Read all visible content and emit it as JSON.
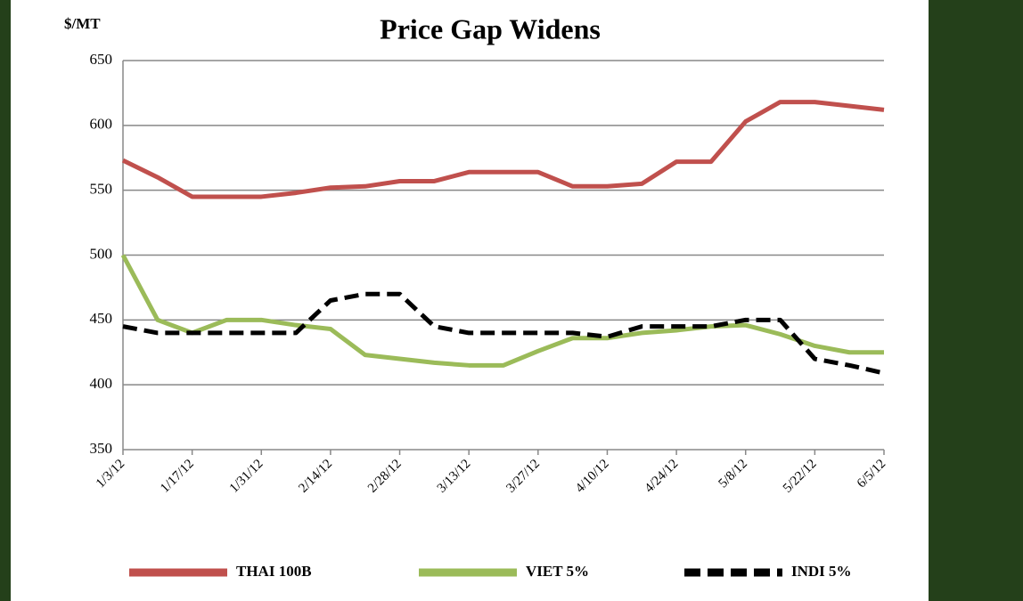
{
  "chart_data": {
    "type": "line",
    "title": "Price Gap Widens",
    "y_label": "$/MT",
    "categories": [
      "1/3/12",
      null,
      "1/17/12",
      null,
      "1/31/12",
      null,
      "2/14/12",
      null,
      "2/28/12",
      null,
      "3/13/12",
      null,
      "3/27/12",
      null,
      "4/10/12",
      null,
      "4/24/12",
      null,
      "5/8/12",
      null,
      "5/22/12",
      null,
      "6/5/12"
    ],
    "series": [
      {
        "name": "THAI 100B",
        "color": "#c0504d",
        "line_style": "solid",
        "values": [
          573,
          560,
          545,
          545,
          545,
          548,
          552,
          553,
          557,
          557,
          564,
          564,
          564,
          553,
          553,
          555,
          572,
          572,
          603,
          618,
          618,
          615,
          612
        ]
      },
      {
        "name": "VIET 5%",
        "color": "#9bbb59",
        "line_style": "solid",
        "values": [
          500,
          450,
          440,
          450,
          450,
          446,
          443,
          423,
          420,
          417,
          415,
          415,
          426,
          436,
          436,
          440,
          442,
          445,
          446,
          439,
          430,
          425,
          425
        ]
      },
      {
        "name": "INDI 5%",
        "color": "#000000",
        "line_style": "dashed",
        "values": [
          445,
          440,
          440,
          440,
          440,
          440,
          465,
          470,
          470,
          445,
          440,
          440,
          440,
          440,
          437,
          445,
          445,
          445,
          450,
          450,
          420,
          415,
          409
        ]
      }
    ],
    "ylim": [
      350,
      650
    ],
    "yticks": [
      350,
      400,
      450,
      500,
      550,
      600,
      650
    ],
    "grid": true,
    "legend": "bottom"
  }
}
